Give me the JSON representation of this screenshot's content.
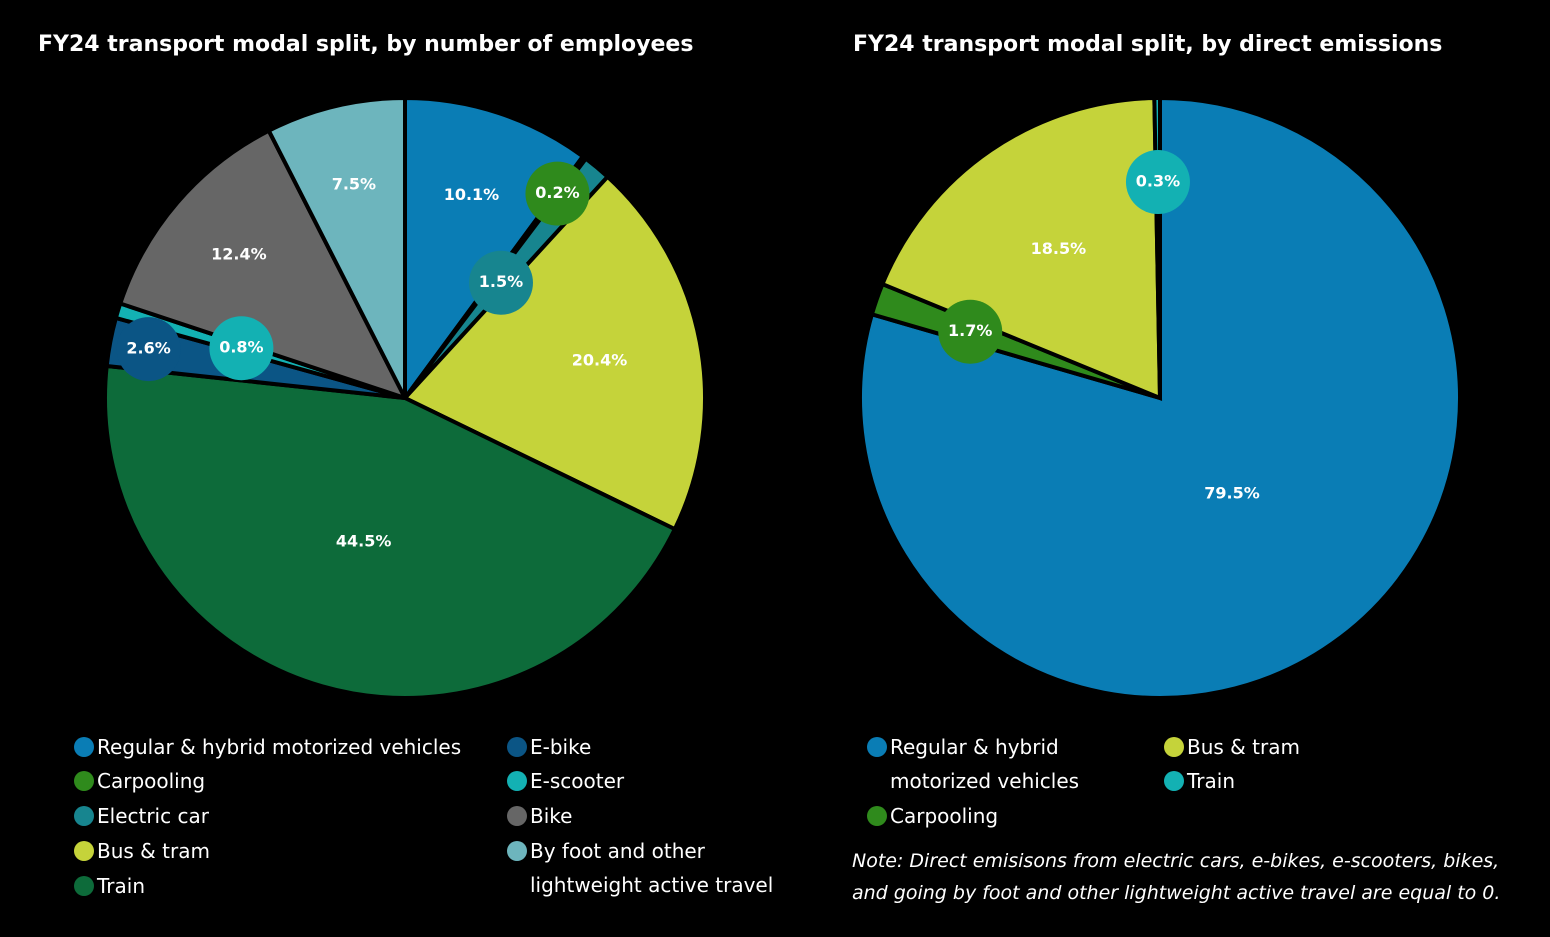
{
  "chart_data": [
    {
      "type": "pie",
      "title": "FY24 transport modal split, by number of employees",
      "categories": [
        "Regular & hybrid motorized vehicles",
        "Carpooling",
        "Electric car",
        "Bus & tram",
        "Train",
        "E-bike",
        "E-scooter",
        "Bike",
        "By foot and other lightweight active travel"
      ],
      "values": [
        10.1,
        0.2,
        1.5,
        20.4,
        44.5,
        2.6,
        0.8,
        12.4,
        7.5
      ],
      "value_labels": [
        "10.1%",
        "0.2%",
        "1.5%",
        "20.4%",
        "44.5%",
        "2.6%",
        "0.8%",
        "12.4%",
        "7.5%"
      ],
      "colors": [
        "#0a7db5",
        "#2f8a1c",
        "#17858f",
        "#c5d33a",
        "#0d6b3a",
        "#0b5585",
        "#13b1b3",
        "#666666",
        "#6db5bd"
      ]
    },
    {
      "type": "pie",
      "title": "FY24 transport modal split, by direct emissions",
      "categories": [
        "Regular & hybrid motorized vehicles",
        "Carpooling",
        "Bus & tram",
        "Train"
      ],
      "values": [
        79.5,
        1.7,
        18.5,
        0.3
      ],
      "value_labels": [
        "79.5%",
        "1.7%",
        "18.5%",
        "0.3%"
      ],
      "colors": [
        "#0a7db5",
        "#2f8a1c",
        "#c5d33a",
        "#13b1b3"
      ],
      "note": "Note: Direct emisisons from electric cars, e-bikes, e-scooters, bikes, and going by foot and other lightweight active travel are equal to 0."
    }
  ]
}
